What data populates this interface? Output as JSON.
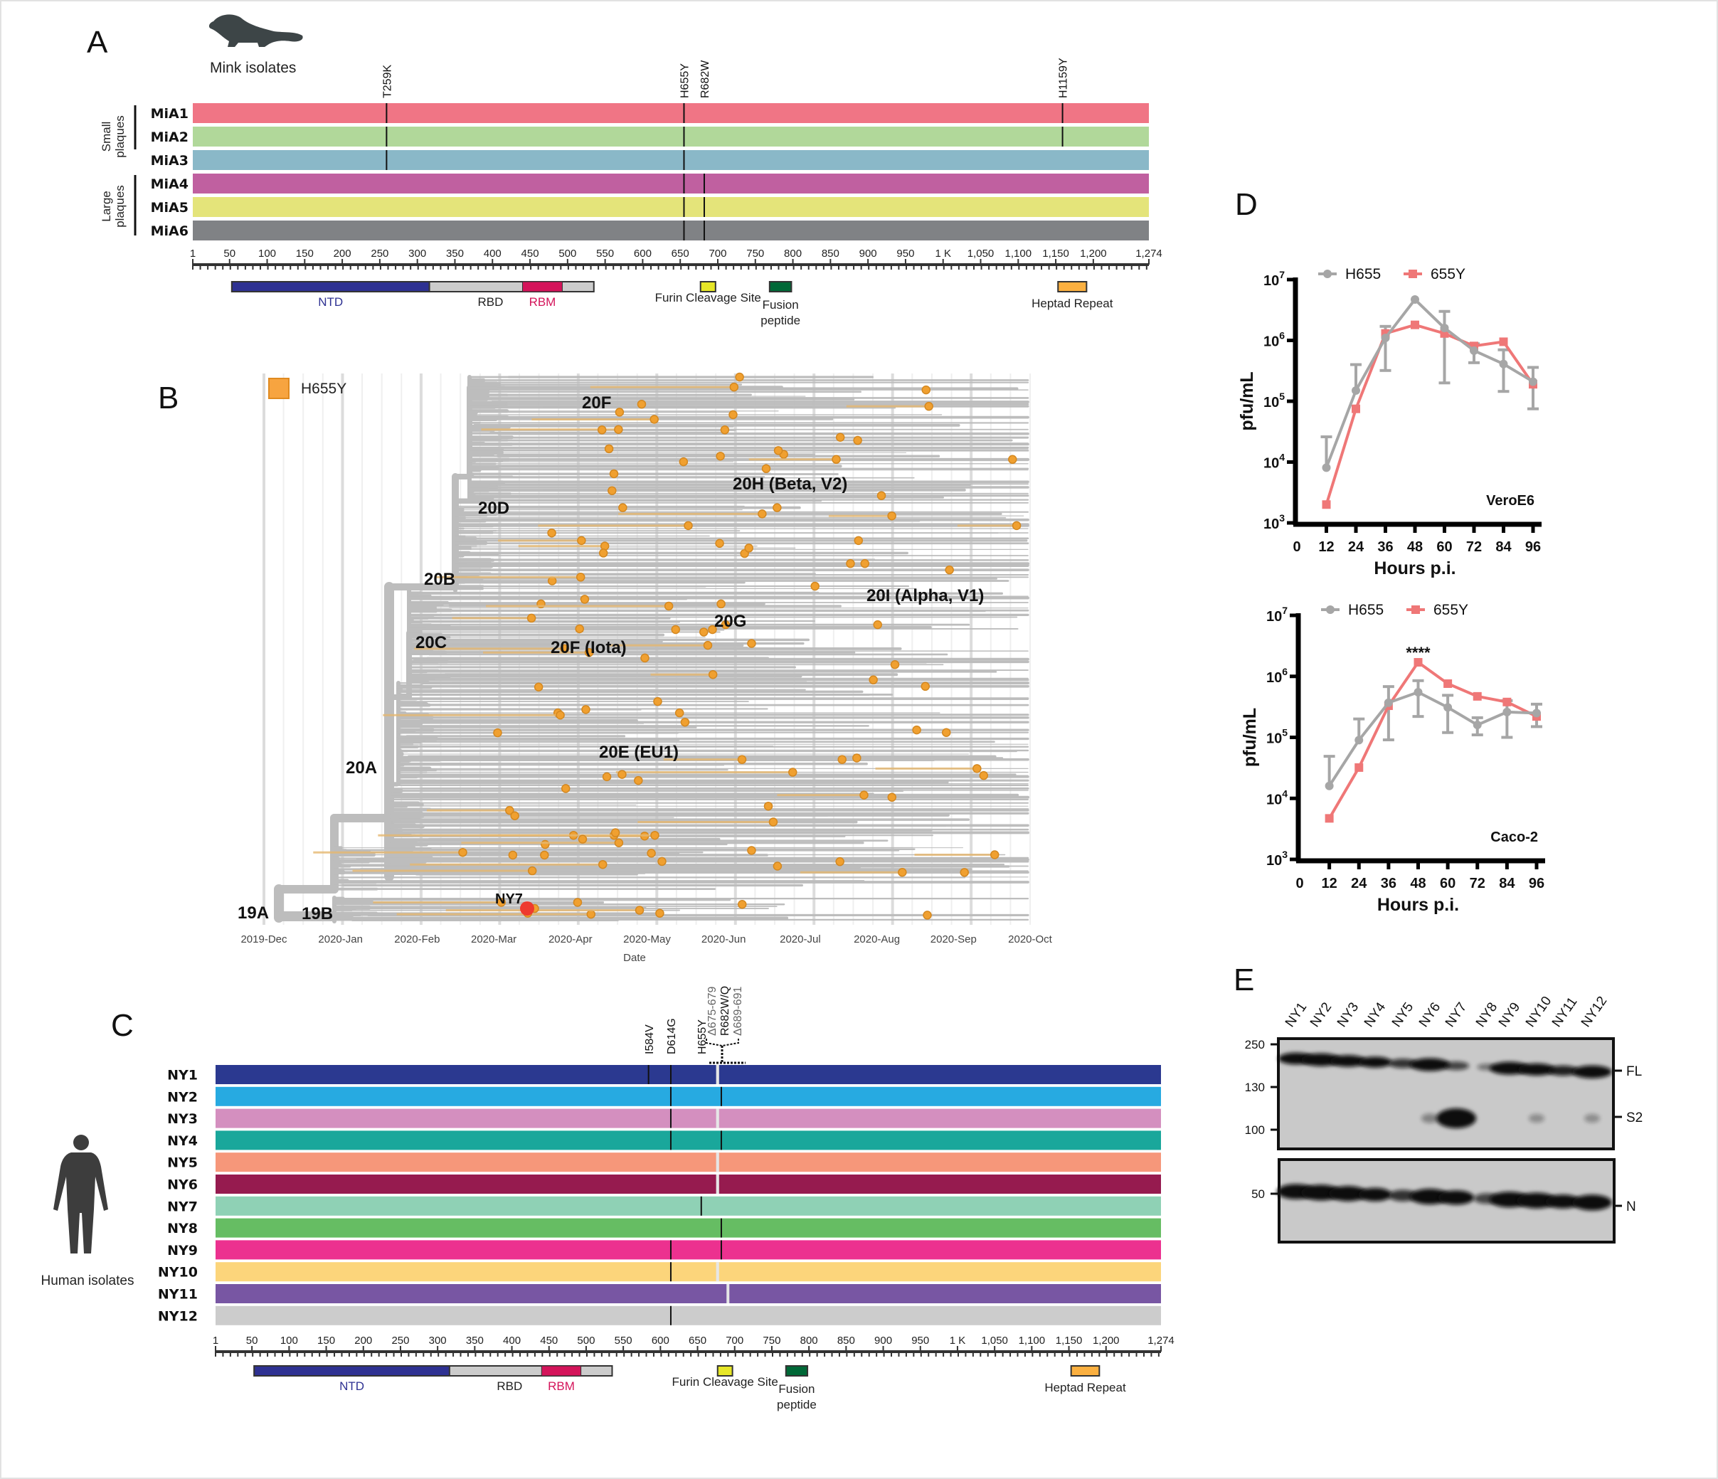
{
  "panel_labels": {
    "a": "A",
    "b": "B",
    "c": "C",
    "d": "D",
    "e": "E"
  },
  "colors": {
    "h655": "#a6a6a6",
    "y655": "#ef7777",
    "tree_branch": "#bdbdbd",
    "h655y_dot": "#f0a030",
    "ny7_dot": "#ee3a2f",
    "ntd": "#2e3192",
    "rbd": "#cccccc",
    "rbm": "#d4145a",
    "furin": "#e6e627",
    "fusion": "#006837",
    "heptad": "#fbb040"
  },
  "spike_axis": {
    "ticks": [
      {
        "v": 1,
        "label": "1"
      },
      {
        "v": 50,
        "label": "50"
      },
      {
        "v": 100,
        "label": "100"
      },
      {
        "v": 150,
        "label": "150"
      },
      {
        "v": 200,
        "label": "200"
      },
      {
        "v": 250,
        "label": "250"
      },
      {
        "v": 300,
        "label": "300"
      },
      {
        "v": 350,
        "label": "350"
      },
      {
        "v": 400,
        "label": "400"
      },
      {
        "v": 450,
        "label": "450"
      },
      {
        "v": 500,
        "label": "500"
      },
      {
        "v": 550,
        "label": "550"
      },
      {
        "v": 600,
        "label": "600"
      },
      {
        "v": 650,
        "label": "650"
      },
      {
        "v": 700,
        "label": "700"
      },
      {
        "v": 750,
        "label": "750"
      },
      {
        "v": 800,
        "label": "800"
      },
      {
        "v": 850,
        "label": "850"
      },
      {
        "v": 900,
        "label": "900"
      },
      {
        "v": 950,
        "label": "950"
      },
      {
        "v": 1000,
        "label": "1 K"
      },
      {
        "v": 1050,
        "label": "1,050"
      },
      {
        "v": 1100,
        "label": "1,100"
      },
      {
        "v": 1150,
        "label": "1,150"
      },
      {
        "v": 1200,
        "label": "1,200"
      },
      {
        "v": 1274,
        "label": "1,274"
      }
    ],
    "length": 1274
  },
  "domains": {
    "ntd": {
      "label": "NTD",
      "start": 53,
      "end": 316
    },
    "rbd": {
      "label": "RBD",
      "start": 316,
      "end": 535
    },
    "rbm": {
      "label": "RBM",
      "start": 440,
      "end": 493
    },
    "furin": {
      "label": "Furin Cleavage Site",
      "start": 677,
      "end": 697
    },
    "fusion": {
      "label1": "Fusion",
      "label2": "peptide",
      "start": 769,
      "end": 798
    },
    "heptad": {
      "label": "Heptad Repeat",
      "start": 1153,
      "end": 1191
    }
  },
  "panel_a": {
    "title": "Mink isolates",
    "group_small": [
      "Small",
      "plaques"
    ],
    "group_large": [
      "Large",
      "plaques"
    ],
    "mutation_labels": [
      {
        "label": "T259K",
        "pos": 259
      },
      {
        "label": "H655Y",
        "pos": 655
      },
      {
        "label": "R682W",
        "pos": 682
      },
      {
        "label": "H1159Y",
        "pos": 1159
      }
    ],
    "rows": [
      {
        "name": "MiA1",
        "color": "#f07585",
        "muts": [
          259,
          655,
          1159
        ]
      },
      {
        "name": "MiA2",
        "color": "#b1d89a",
        "muts": [
          259,
          655,
          1159
        ]
      },
      {
        "name": "MiA3",
        "color": "#8ab8c8",
        "muts": [
          259,
          655
        ]
      },
      {
        "name": "MiA4",
        "color": "#c060a0",
        "muts": [
          655,
          682
        ]
      },
      {
        "name": "MiA5",
        "color": "#e4e47a",
        "muts": [
          655,
          682
        ]
      },
      {
        "name": "MiA6",
        "color": "#808285",
        "muts": [
          655,
          682
        ]
      }
    ]
  },
  "panel_b": {
    "legend": "H655Y",
    "x_label": "Date",
    "dates": [
      "2019-Dec",
      "2020-Jan",
      "2020-Feb",
      "2020-Mar",
      "2020-Apr",
      "2020-May",
      "2020-Jun",
      "2020-Jul",
      "2020-Aug",
      "2020-Sep",
      "2020-Oct"
    ],
    "clades": {
      "c20F": "20F",
      "c20H": "20H (Beta, V2)",
      "c20D": "20D",
      "c20B": "20B",
      "c20I": "20I (Alpha, V1)",
      "c20G": "20G",
      "c20C": "20C",
      "c20Fi": "20F (Iota)",
      "c20E": "20E (EU1)",
      "c20A": "20A",
      "c19A": "19A",
      "c19B": "19B"
    },
    "highlight": "NY7"
  },
  "panel_c": {
    "title": "Human isolates",
    "mutation_labels": {
      "i584v": "I584V",
      "d614g": "D614G",
      "h655y": "H655Y",
      "del675": "Δ675-679",
      "r682": "R682W/Q",
      "del689": "Δ689-691"
    },
    "rows": [
      {
        "name": "NY1",
        "color": "#2b3990",
        "muts": [
          584,
          614
        ],
        "dels": [
          [
            675,
            679
          ]
        ]
      },
      {
        "name": "NY2",
        "color": "#27aae1",
        "muts": [
          614,
          682
        ],
        "dels": []
      },
      {
        "name": "NY3",
        "color": "#d48fbf",
        "muts": [
          614
        ],
        "dels": [
          [
            675,
            679
          ]
        ]
      },
      {
        "name": "NY4",
        "color": "#1aa79b",
        "muts": [
          614,
          682
        ],
        "dels": []
      },
      {
        "name": "NY5",
        "color": "#f6977a",
        "muts": [],
        "dels": [
          [
            675,
            679
          ]
        ]
      },
      {
        "name": "NY6",
        "color": "#961b4f",
        "muts": [],
        "dels": [
          [
            675,
            679
          ]
        ]
      },
      {
        "name": "NY7",
        "color": "#8fd1b5",
        "muts": [
          655
        ],
        "dels": []
      },
      {
        "name": "NY8",
        "color": "#66bd63",
        "muts": [
          682
        ],
        "dels": []
      },
      {
        "name": "NY9",
        "color": "#ec318f",
        "muts": [
          614,
          682
        ],
        "dels": []
      },
      {
        "name": "NY10",
        "color": "#fcd57b",
        "muts": [
          614
        ],
        "dels": [
          [
            675,
            679
          ]
        ]
      },
      {
        "name": "NY11",
        "color": "#7856a3",
        "muts": [],
        "dels": [
          [
            689,
            691
          ]
        ]
      },
      {
        "name": "NY12",
        "color": "#cccccc",
        "muts": [
          614
        ],
        "dels": []
      }
    ]
  },
  "chart_data": [
    {
      "type": "line",
      "title": "VeroE6",
      "xlabel": "Hours p.i.",
      "ylabel": "pfu/mL",
      "x": [
        12,
        24,
        36,
        48,
        60,
        72,
        84,
        96
      ],
      "x_ticks": [
        0,
        12,
        24,
        36,
        48,
        60,
        72,
        84,
        96
      ],
      "xlim": [
        0,
        96
      ],
      "y_scale": "log",
      "ylim": [
        1000,
        10000000
      ],
      "y_tick_exponents": [
        3,
        4,
        5,
        6,
        7
      ],
      "legend": "top",
      "series": [
        {
          "name": "H655",
          "color": "#a6a6a6",
          "marker": "circle",
          "values": [
            8100,
            150000,
            1100000,
            4700000,
            1600000,
            680000,
            410000,
            210000
          ],
          "err_low": [
            8100,
            150000,
            320000,
            4700000,
            200000,
            430000,
            145000,
            75000
          ],
          "err_high": [
            26000,
            400000,
            1700000,
            4700000,
            3000000,
            880000,
            700000,
            360000
          ]
        },
        {
          "name": "655Y",
          "color": "#ef7777",
          "marker": "square",
          "values": [
            2000,
            75000,
            1300000,
            1800000,
            1300000,
            810000,
            950000,
            190000
          ]
        }
      ],
      "annotations": []
    },
    {
      "type": "line",
      "title": "Caco-2",
      "xlabel": "Hours p.i.",
      "ylabel": "pfu/mL",
      "x": [
        12,
        24,
        36,
        48,
        60,
        72,
        84,
        96
      ],
      "x_ticks": [
        0,
        12,
        24,
        36,
        48,
        60,
        72,
        84,
        96
      ],
      "xlim": [
        0,
        96
      ],
      "y_scale": "log",
      "ylim": [
        1000,
        10000000
      ],
      "y_tick_exponents": [
        3,
        4,
        5,
        6,
        7
      ],
      "legend": "top",
      "series": [
        {
          "name": "H655",
          "color": "#a6a6a6",
          "marker": "circle",
          "values": [
            16000,
            90000,
            370000,
            550000,
            310000,
            160000,
            260000,
            250000
          ],
          "err_low": [
            16000,
            90000,
            91000,
            220000,
            120000,
            110000,
            100000,
            150000
          ],
          "err_high": [
            49000,
            200000,
            680000,
            850000,
            490000,
            210000,
            400000,
            350000
          ]
        },
        {
          "name": "655Y",
          "color": "#ef7777",
          "marker": "square",
          "values": [
            4700,
            32000,
            330000,
            1700000,
            760000,
            470000,
            380000,
            220000
          ]
        }
      ],
      "annotations": [
        {
          "x": 48,
          "text": "****"
        }
      ]
    }
  ],
  "panel_e": {
    "lanes": [
      "NY1",
      "NY2",
      "NY3",
      "NY4",
      "NY5",
      "NY6",
      "NY7",
      "NY8",
      "NY9",
      "NY10",
      "NY11",
      "NY12"
    ],
    "markers_top": [
      "250",
      "130",
      "100"
    ],
    "marker_bottom": "50",
    "band_labels": {
      "fl": "FL",
      "s2": "S2",
      "n": "N"
    },
    "fl_intensity": [
      0.85,
      1,
      0.85,
      0.75,
      0.55,
      1,
      0.45,
      0.2,
      1,
      0.9,
      0.65,
      1
    ],
    "s2_intensity": [
      0,
      0,
      0,
      0,
      0,
      0.12,
      1,
      0,
      0,
      0.06,
      0,
      0.06
    ],
    "n_intensity": [
      0.95,
      1,
      0.95,
      0.75,
      0.55,
      1,
      0.85,
      0.45,
      1,
      1,
      0.8,
      1
    ]
  }
}
